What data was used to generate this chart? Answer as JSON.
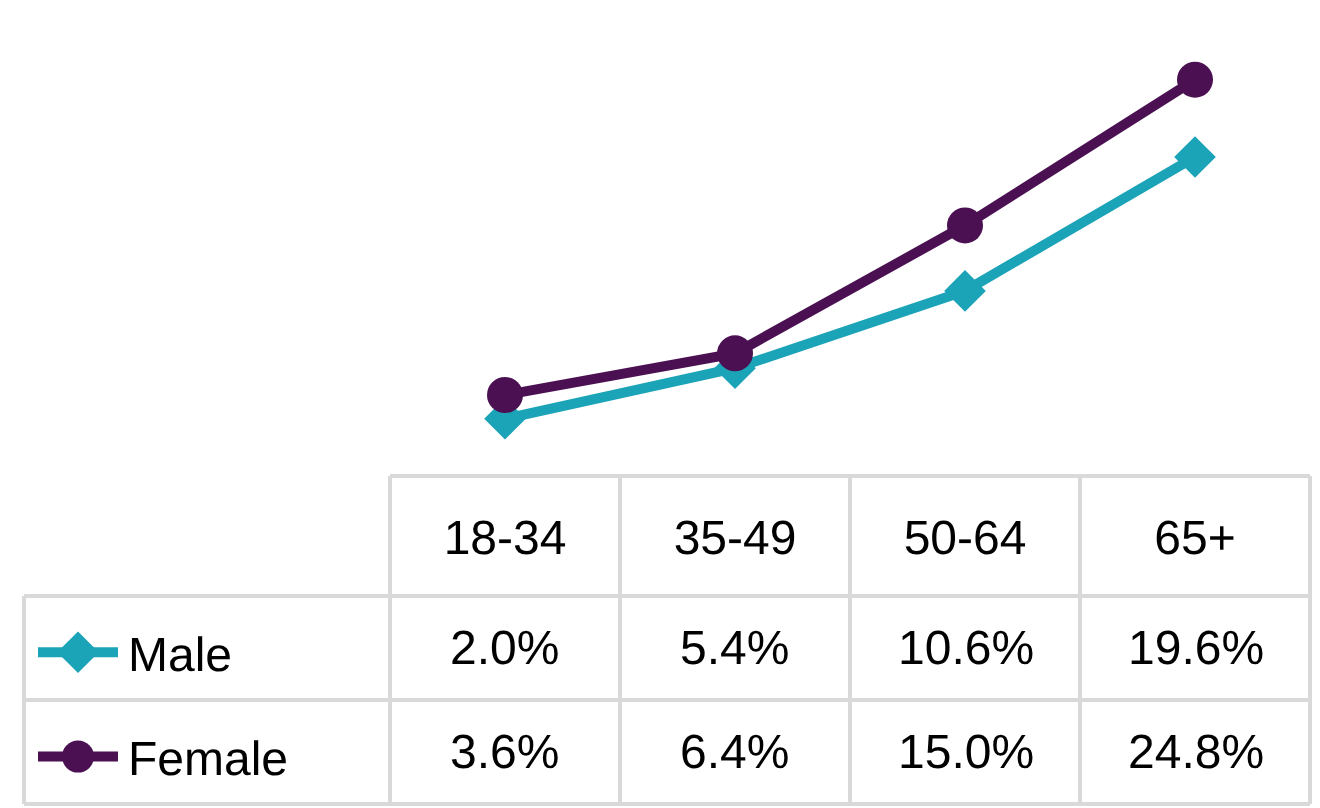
{
  "chart_data": {
    "type": "line",
    "categories": [
      "18-34",
      "35-49",
      "50-64",
      "65+"
    ],
    "series": [
      {
        "name": "Male",
        "color": "#1ba3b8",
        "marker": "diamond",
        "values": [
          2.0,
          5.4,
          10.6,
          19.6
        ],
        "value_labels": [
          "2.0%",
          "5.4%",
          "10.6%",
          "19.6%"
        ]
      },
      {
        "name": "Female",
        "color": "#4a1052",
        "marker": "circle",
        "values": [
          3.6,
          6.4,
          15.0,
          24.8
        ],
        "value_labels": [
          "3.6%",
          "6.4%",
          "15.0%",
          "24.8%"
        ]
      }
    ],
    "legend": "bottom left",
    "line_style": "solid"
  }
}
